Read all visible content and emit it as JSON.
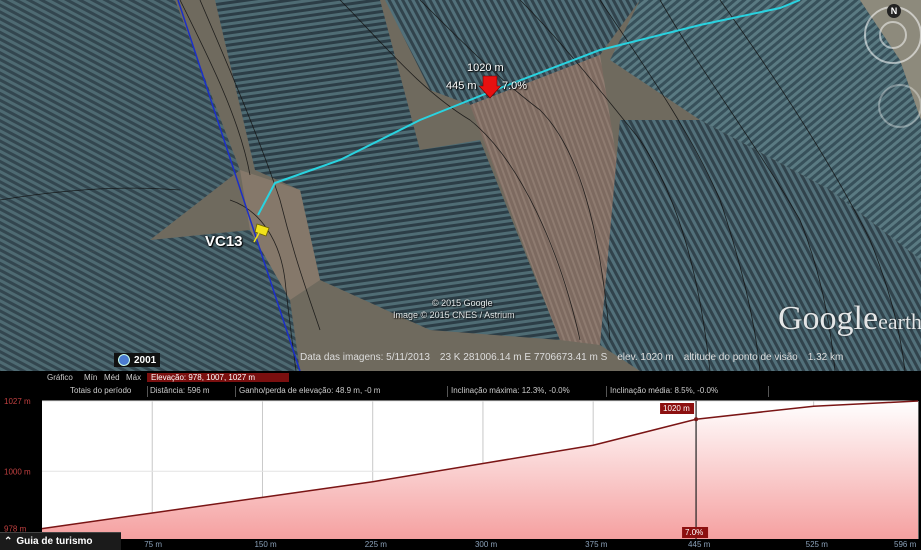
{
  "map": {
    "placemark_label": "VC13",
    "cursor_label_top": "1020 m",
    "cursor_label_left": "445 m",
    "cursor_label_right": "7.0%",
    "copyright_line1": "© 2015 Google",
    "copyright_line2": "Image © 2015 CNES / Astrium",
    "historical_year": "2001",
    "brand_main": "Google",
    "brand_small": "earth",
    "compass_letter": "N",
    "statusbar": {
      "image_date": "Data das imagens: 5/11/2013",
      "coords": "23 K 281006.14 m E 7706673.41 m S",
      "elevation": "elev. 1020 m",
      "eye_altitude": "altitude do ponto de visão",
      "eye_value": "1.32 km"
    },
    "colors": {
      "path": "#29d3e0",
      "grid_line": "#1c2fc8",
      "marker": "#e81010",
      "placemark": "#f1e21a"
    }
  },
  "profile": {
    "toolbar": {
      "graph": "Gráfico",
      "min": "Mín",
      "med": "Méd",
      "max": "Máx",
      "elevation_summary": "Elevação: 978, 1007, 1027 m"
    },
    "stats": {
      "label": "Totais do período",
      "distance": "Distância: 596 m",
      "gain_loss": "Ganho/perda de elevação: 48.9 m, -0 m",
      "max_slope": "Inclinação máxima: 12.3%, -0.0%",
      "avg_slope": "Inclinação média: 8.5%, -0.0%"
    },
    "cursor_value": "1020 m",
    "cursor_slope": "7.0%",
    "tour_guide": "Guia de turismo",
    "colors": {
      "fill_top": "#ffffff",
      "fill_bottom": "#f5a0a0",
      "line": "#7a1515",
      "badge": "#8c1010"
    }
  },
  "chart_data": {
    "type": "area",
    "title": "",
    "xlabel": "",
    "ylabel": "",
    "x": [
      0,
      75,
      150,
      225,
      300,
      375,
      445,
      525,
      596
    ],
    "y": [
      978,
      984,
      990,
      996,
      1003,
      1010,
      1020,
      1025,
      1027
    ],
    "x_ticks": [
      "75 m",
      "150 m",
      "225 m",
      "300 m",
      "375 m",
      "445 m",
      "525 m",
      "596 m"
    ],
    "x_tick_values": [
      75,
      150,
      225,
      300,
      375,
      445,
      525,
      596
    ],
    "y_ticks": [
      "978 m",
      "1000 m",
      "1027 m"
    ],
    "y_tick_values": [
      978,
      1000,
      1027
    ],
    "xlim": [
      0,
      596
    ],
    "ylim": [
      974,
      1027
    ],
    "cursor_x": 445,
    "grid": true
  }
}
